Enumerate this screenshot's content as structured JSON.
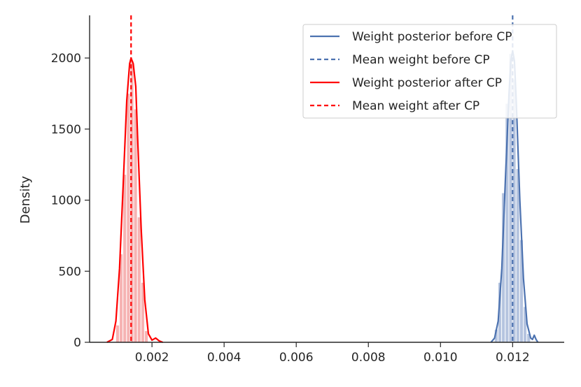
{
  "chart_data": {
    "type": "area",
    "xlabel": "",
    "ylabel": "Density",
    "xlim": [
      0.00027,
      0.01343
    ],
    "ylim": [
      0,
      2300
    ],
    "xticks": [
      0.002,
      0.004,
      0.006,
      0.008,
      0.01,
      0.012
    ],
    "xtick_labels": [
      "0.002",
      "0.004",
      "0.006",
      "0.008",
      "0.010",
      "0.012"
    ],
    "yticks": [
      0,
      500,
      1000,
      1500,
      2000
    ],
    "ytick_labels": [
      "0",
      "500",
      "1000",
      "1500",
      "2000"
    ],
    "grid": false,
    "legend_position": "top-right",
    "legend": [
      "Weight posterior before CP",
      "Mean weight before CP",
      "Weight posterior after CP",
      "Mean weight after CP"
    ],
    "series": [
      {
        "name": "Weight posterior after CP",
        "color": "#ff0000",
        "hist_color": "#f4a6a6",
        "mean": 0.00142,
        "std": 0.0002,
        "peak_density": 2000,
        "kde_x": [
          0.00075,
          0.0009,
          0.001,
          0.0011,
          0.0012,
          0.0013,
          0.00138,
          0.00142,
          0.00148,
          0.00155,
          0.0016,
          0.0017,
          0.0018,
          0.0019,
          0.002,
          0.0021,
          0.0022,
          0.0023
        ],
        "kde_y": [
          0,
          20,
          150,
          520,
          1100,
          1700,
          1960,
          2000,
          1960,
          1800,
          1450,
          800,
          300,
          60,
          15,
          30,
          10,
          0
        ],
        "hist_bins": [
          0.00105,
          0.00115,
          0.00125,
          0.00135,
          0.00145,
          0.00155,
          0.00165,
          0.00175,
          0.00185
        ],
        "hist_heights": [
          120,
          620,
          1180,
          1750,
          1980,
          1640,
          880,
          420,
          80
        ]
      },
      {
        "name": "Weight posterior before CP",
        "color": "#4c72b0",
        "hist_color": "#a8bad9",
        "mean": 0.012,
        "std": 0.0002,
        "peak_density": 2050,
        "kde_x": [
          0.0114,
          0.0115,
          0.0116,
          0.0117,
          0.0118,
          0.0119,
          0.01195,
          0.012,
          0.01205,
          0.0121,
          0.0122,
          0.0123,
          0.0124,
          0.0125,
          0.01255,
          0.0126,
          0.01265,
          0.0127
        ],
        "kde_y": [
          0,
          30,
          150,
          520,
          1150,
          1750,
          1980,
          2050,
          1980,
          1700,
          1000,
          450,
          130,
          30,
          20,
          50,
          20,
          0
        ],
        "hist_bins": [
          0.01155,
          0.01165,
          0.01175,
          0.01185,
          0.01195,
          0.01205,
          0.01215,
          0.01225,
          0.01235,
          0.01245
        ],
        "hist_heights": [
          90,
          420,
          1050,
          1680,
          2030,
          1850,
          1220,
          720,
          250,
          60
        ]
      }
    ],
    "mean_lines": [
      {
        "name": "Mean weight after CP",
        "x": 0.00142,
        "color": "#ff0000"
      },
      {
        "name": "Mean weight before CP",
        "x": 0.012,
        "color": "#4c72b0"
      }
    ]
  },
  "legend_items": [
    {
      "label": "Weight posterior before CP",
      "color": "#4c72b0",
      "dashed": false
    },
    {
      "label": "Mean weight before CP",
      "color": "#4c72b0",
      "dashed": true
    },
    {
      "label": "Weight posterior after CP",
      "color": "#ff0000",
      "dashed": false
    },
    {
      "label": "Mean weight after CP",
      "color": "#ff0000",
      "dashed": true
    }
  ]
}
